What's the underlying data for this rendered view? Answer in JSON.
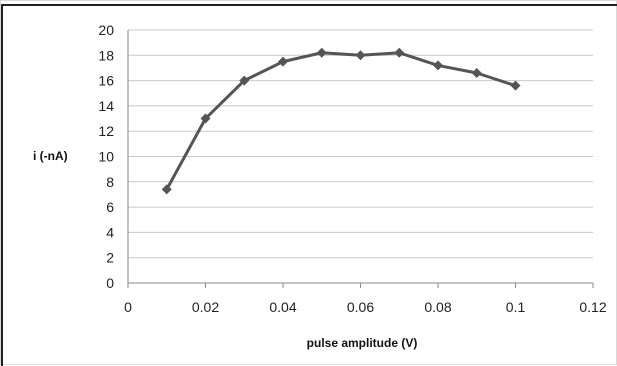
{
  "chart_data": {
    "type": "line",
    "title": "",
    "xlabel": "pulse amplitude (V)",
    "ylabel": "i (-nA)",
    "xlim": [
      0,
      0.12
    ],
    "ylim": [
      0,
      20
    ],
    "xticks": [
      "0",
      "0.02",
      "0.04",
      "0.06",
      "0.08",
      "0.1",
      "0.12"
    ],
    "yticks": [
      "0",
      "2",
      "4",
      "6",
      "8",
      "10",
      "12",
      "14",
      "16",
      "18",
      "20"
    ],
    "grid": "horizontal",
    "marker": "diamond",
    "series_color": "#555555",
    "series": [
      {
        "x": [
          0.01,
          0.02,
          0.03,
          0.04,
          0.05,
          0.06,
          0.07,
          0.08,
          0.09,
          0.1
        ],
        "y": [
          7.4,
          13.0,
          16.0,
          17.5,
          18.2,
          18.0,
          18.2,
          17.2,
          16.6,
          15.6
        ]
      }
    ]
  }
}
